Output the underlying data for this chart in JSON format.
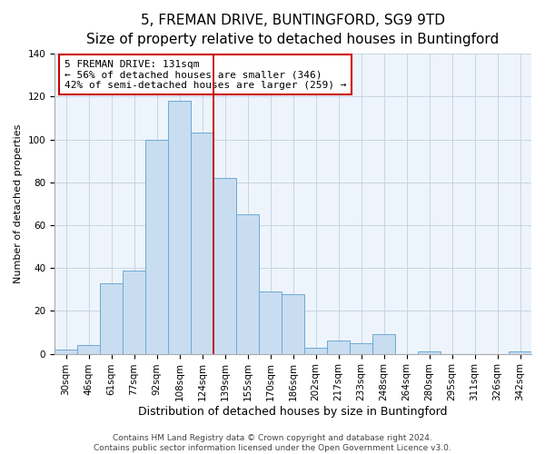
{
  "title": "5, FREMAN DRIVE, BUNTINGFORD, SG9 9TD",
  "subtitle": "Size of property relative to detached houses in Buntingford",
  "xlabel": "Distribution of detached houses by size in Buntingford",
  "ylabel": "Number of detached properties",
  "bar_labels": [
    "30sqm",
    "46sqm",
    "61sqm",
    "77sqm",
    "92sqm",
    "108sqm",
    "124sqm",
    "139sqm",
    "155sqm",
    "170sqm",
    "186sqm",
    "202sqm",
    "217sqm",
    "233sqm",
    "248sqm",
    "264sqm",
    "280sqm",
    "295sqm",
    "311sqm",
    "326sqm",
    "342sqm"
  ],
  "bar_values": [
    2,
    4,
    33,
    39,
    100,
    118,
    103,
    82,
    65,
    29,
    28,
    3,
    6,
    5,
    9,
    0,
    1,
    0,
    0,
    0,
    1
  ],
  "bar_color": "#c9ddf0",
  "bar_edge_color": "#6aaad4",
  "ylim": [
    0,
    140
  ],
  "yticks": [
    0,
    20,
    40,
    60,
    80,
    100,
    120,
    140
  ],
  "vline_x_index": 6,
  "vline_color": "#cc0000",
  "annotation_title": "5 FREMAN DRIVE: 131sqm",
  "annotation_line1": "← 56% of detached houses are smaller (346)",
  "annotation_line2": "42% of semi-detached houses are larger (259) →",
  "annotation_box_color": "#ffffff",
  "annotation_box_edge": "#cc0000",
  "footer1": "Contains HM Land Registry data © Crown copyright and database right 2024.",
  "footer2": "Contains public sector information licensed under the Open Government Licence v3.0.",
  "title_fontsize": 11,
  "subtitle_fontsize": 9.5,
  "xlabel_fontsize": 9,
  "ylabel_fontsize": 8,
  "tick_fontsize": 7.5,
  "annotation_fontsize": 8,
  "footer_fontsize": 6.5,
  "bg_color": "#eef4fb"
}
